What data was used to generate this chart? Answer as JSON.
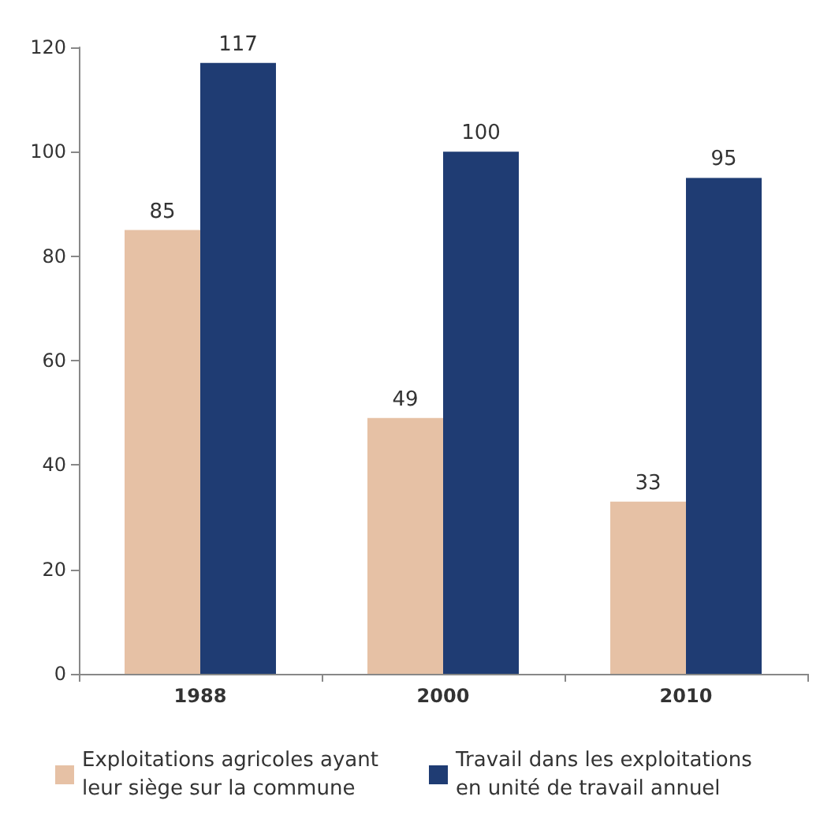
{
  "chart_data": {
    "type": "bar",
    "categories": [
      "1988",
      "2000",
      "2010"
    ],
    "series": [
      {
        "name": "Exploitations agricoles ayant leur siège sur la commune",
        "color": "#e6c1a5",
        "values": [
          85,
          49,
          33
        ]
      },
      {
        "name": "Travail dans les exploitations en unité de travail annuel",
        "color": "#1f3c73",
        "values": [
          117,
          100,
          95
        ]
      }
    ],
    "ylim": [
      0,
      120
    ],
    "yticks": [
      0,
      20,
      40,
      60,
      80,
      100,
      120
    ],
    "data_labels": true,
    "grid": false,
    "legend": "bottom"
  }
}
